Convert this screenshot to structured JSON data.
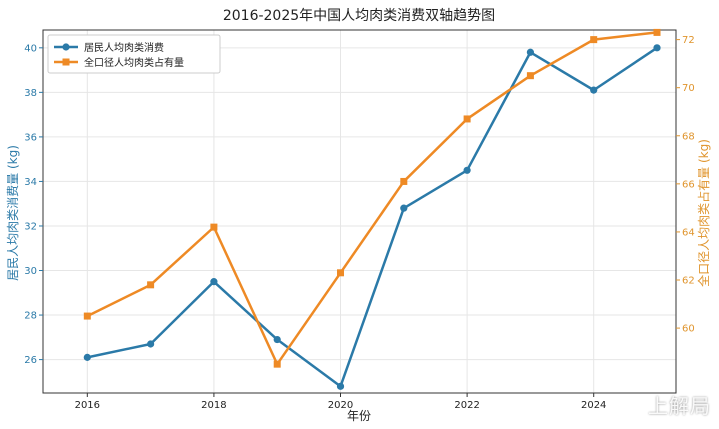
{
  "chart_data": {
    "type": "line",
    "title": "2016-2025年中国人均肉类消费双轴趋势图",
    "xlabel": "年份",
    "ylabel_left": "居民人均肉类消费量 (kg)",
    "ylabel_right": "全口径人均肉类占有量 (kg)",
    "x": [
      2016,
      2017,
      2018,
      2019,
      2020,
      2021,
      2022,
      2023,
      2024,
      2025
    ],
    "x_ticks": [
      2016,
      2018,
      2020,
      2022,
      2024
    ],
    "x_range": [
      2015.3,
      2025.3
    ],
    "left_axis": {
      "range": [
        24.5,
        40.8
      ],
      "ticks": [
        26,
        28,
        30,
        32,
        34,
        36,
        38,
        40
      ],
      "color": "#2b7aa8"
    },
    "right_axis": {
      "range": [
        57.3,
        72.4
      ],
      "ticks": [
        60,
        62,
        64,
        66,
        68,
        70,
        72
      ],
      "color": "#e0952e"
    },
    "grid": true,
    "legend_position": "top-left",
    "series": [
      {
        "name": "居民人均肉类消费",
        "axis": "left",
        "color": "#2b7aa8",
        "marker": "circle",
        "values": [
          26.1,
          26.7,
          29.5,
          26.9,
          24.8,
          32.8,
          34.5,
          39.8,
          38.1,
          40.0
        ]
      },
      {
        "name": "全口径人均肉类占有量",
        "axis": "right",
        "color": "#ee8a25",
        "marker": "square",
        "values": [
          60.5,
          61.8,
          64.2,
          58.5,
          62.3,
          66.1,
          68.7,
          70.5,
          72.0,
          72.3
        ]
      }
    ]
  },
  "watermark": "上解局"
}
